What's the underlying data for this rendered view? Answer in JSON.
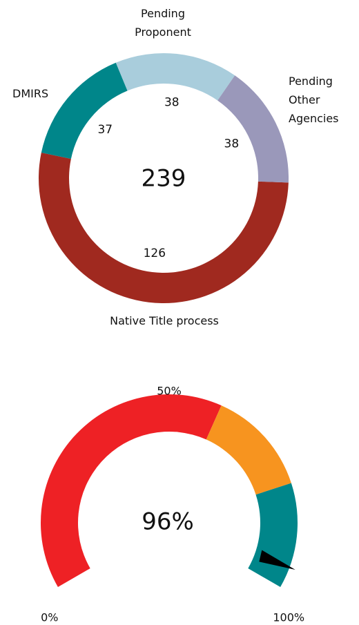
{
  "chart_data": [
    {
      "type": "donut",
      "categories": [
        "Native Title process",
        "DMIRS",
        "Pending Proponent",
        "Pending Other Agencies"
      ],
      "values": [
        126,
        37,
        38,
        38
      ],
      "colors": [
        "#a0291f",
        "#00868a",
        "#a9cddc",
        "#9a98ba"
      ],
      "total": 239
    },
    {
      "type": "gauge",
      "value": 96,
      "value_label": "96%",
      "range": [
        0,
        100
      ],
      "ticks": [
        {
          "value": 0,
          "label": "0%"
        },
        {
          "value": 50,
          "label": "50%"
        },
        {
          "value": 100,
          "label": "100%"
        }
      ],
      "bands": [
        {
          "from": 0,
          "to": 60,
          "color": "#ee2125"
        },
        {
          "from": 60,
          "to": 80,
          "color": "#f7941f"
        },
        {
          "from": 80,
          "to": 100,
          "color": "#00868a"
        }
      ],
      "needle_color": "#000000"
    }
  ]
}
